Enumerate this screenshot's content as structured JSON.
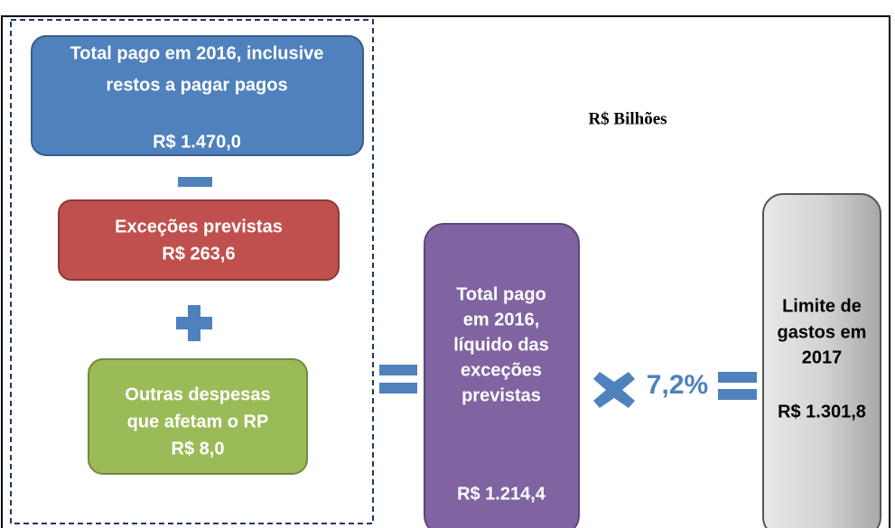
{
  "unit_label": "R$ Bilhões",
  "rate": "7,2%",
  "boxes": [
    {
      "lines": [
        "Total pago em 2016, inclusive",
        "restos a pagar pagos"
      ],
      "amount": "R$ 1.470,0"
    },
    {
      "lines": [
        "Exceções previstas"
      ],
      "amount": "R$ 263,6"
    },
    {
      "lines": [
        "Outras despesas",
        "que afetam o RP"
      ],
      "amount": "R$ 8,0"
    },
    {
      "lines": [
        "Total pago",
        "em 2016,",
        "líquido das",
        "exceções",
        "previstas"
      ],
      "amount": "R$ 1.214,4"
    },
    {
      "lines": [
        "Limite de",
        "gastos em",
        "2017"
      ],
      "amount": "R$ 1.301,8"
    }
  ]
}
